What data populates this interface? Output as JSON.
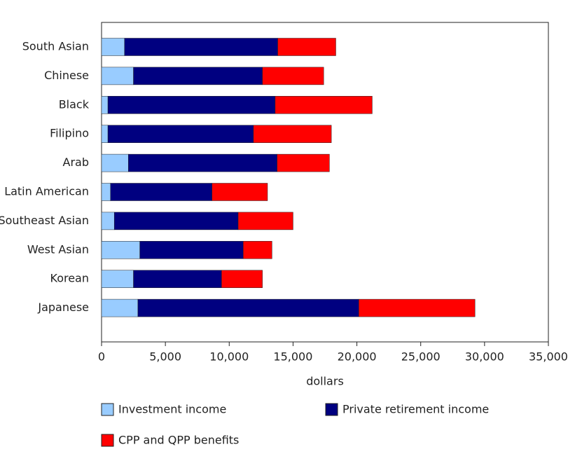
{
  "chart_data": {
    "type": "stacked-barh",
    "x_label": "dollars",
    "categories": [
      "South Asian",
      "Chinese",
      "Black",
      "Filipino",
      "Arab",
      "Latin American",
      "Southeast Asian",
      "West Asian",
      "Korean",
      "Japanese"
    ],
    "series": [
      {
        "name": "Investment income",
        "color": "#99ccff",
        "values": [
          1800,
          2500,
          500,
          500,
          2100,
          700,
          1000,
          3000,
          2500,
          2850
        ]
      },
      {
        "name": "Private retirement income",
        "color": "#000080",
        "values": [
          12000,
          10100,
          13100,
          11400,
          11650,
          7950,
          9700,
          8100,
          6900,
          17300
        ]
      },
      {
        "name": "CPP and QPP benefits",
        "color": "#ff0000",
        "values": [
          4550,
          4800,
          7600,
          6100,
          4100,
          4350,
          4300,
          2250,
          3200,
          9100
        ]
      }
    ],
    "xlim": [
      0,
      35000
    ],
    "xticks": [
      0,
      {
        "value": 5000,
        "label": "5,000"
      },
      {
        "value": 10000,
        "label": "10,000"
      },
      {
        "value": 15000,
        "label": "15,000"
      },
      {
        "value": 20000,
        "label": "20,000"
      },
      {
        "value": 25000,
        "label": "25,000"
      },
      {
        "value": 30000,
        "label": "30,000"
      },
      {
        "value": 35000,
        "label": "35,000"
      }
    ]
  }
}
